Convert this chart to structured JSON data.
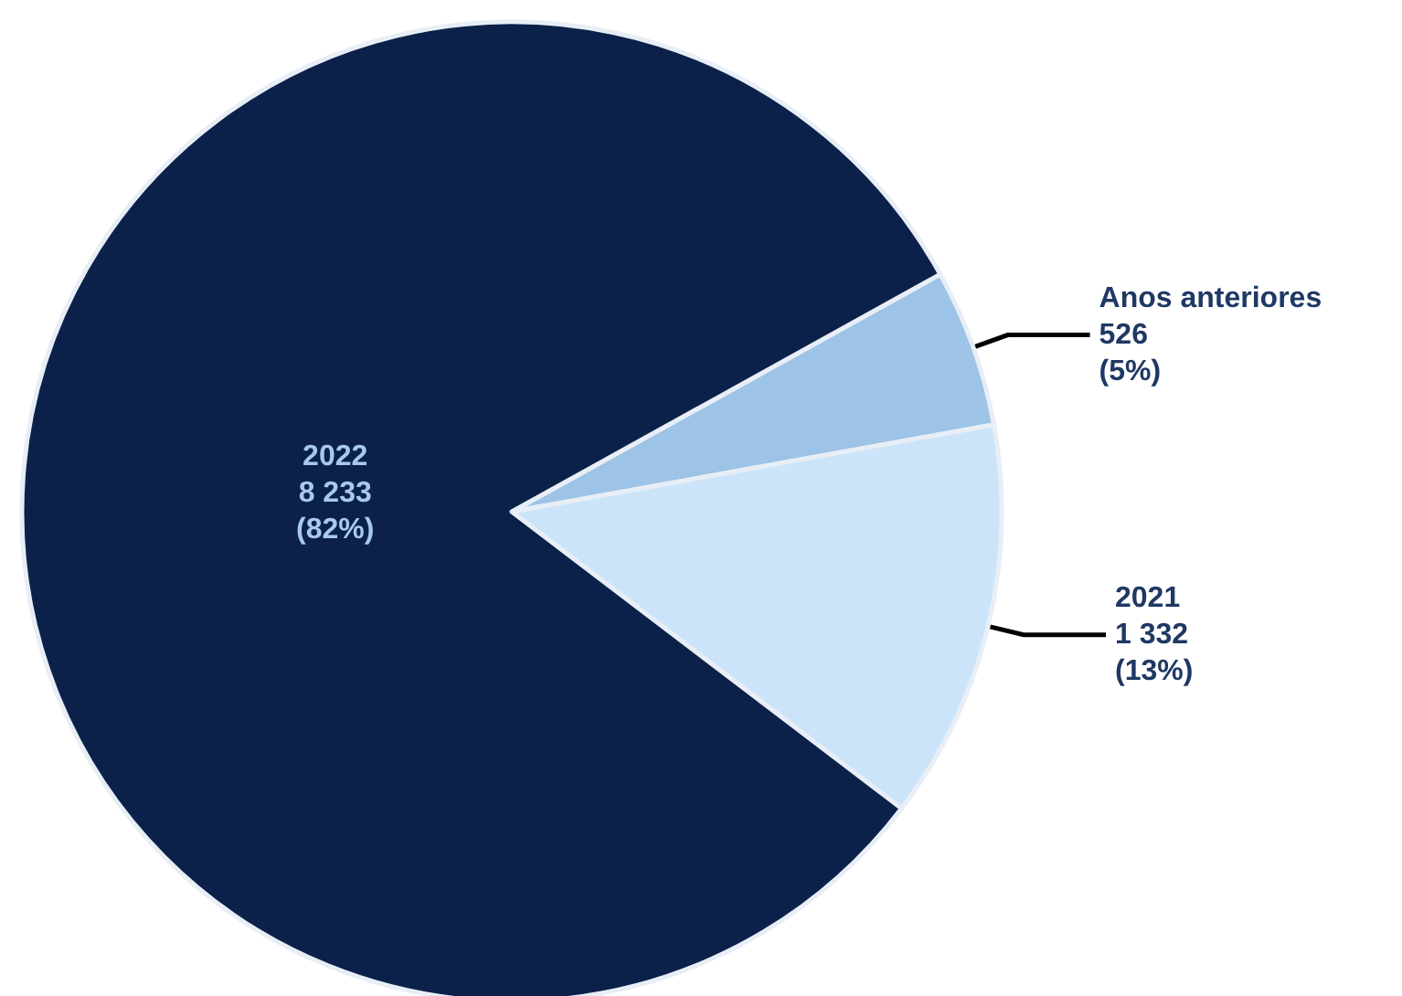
{
  "chart_data": {
    "type": "pie",
    "categories": [
      "Anos anteriores",
      "2021",
      "2022"
    ],
    "values": [
      526,
      1332,
      8233
    ],
    "colors": [
      "#9dc3e6",
      "#cce4f9",
      "#0b2149"
    ],
    "value_labels": [
      "526\n(5%)",
      "1 332\n(13%)",
      "8 233\n(82%)"
    ],
    "legend": false
  }
}
